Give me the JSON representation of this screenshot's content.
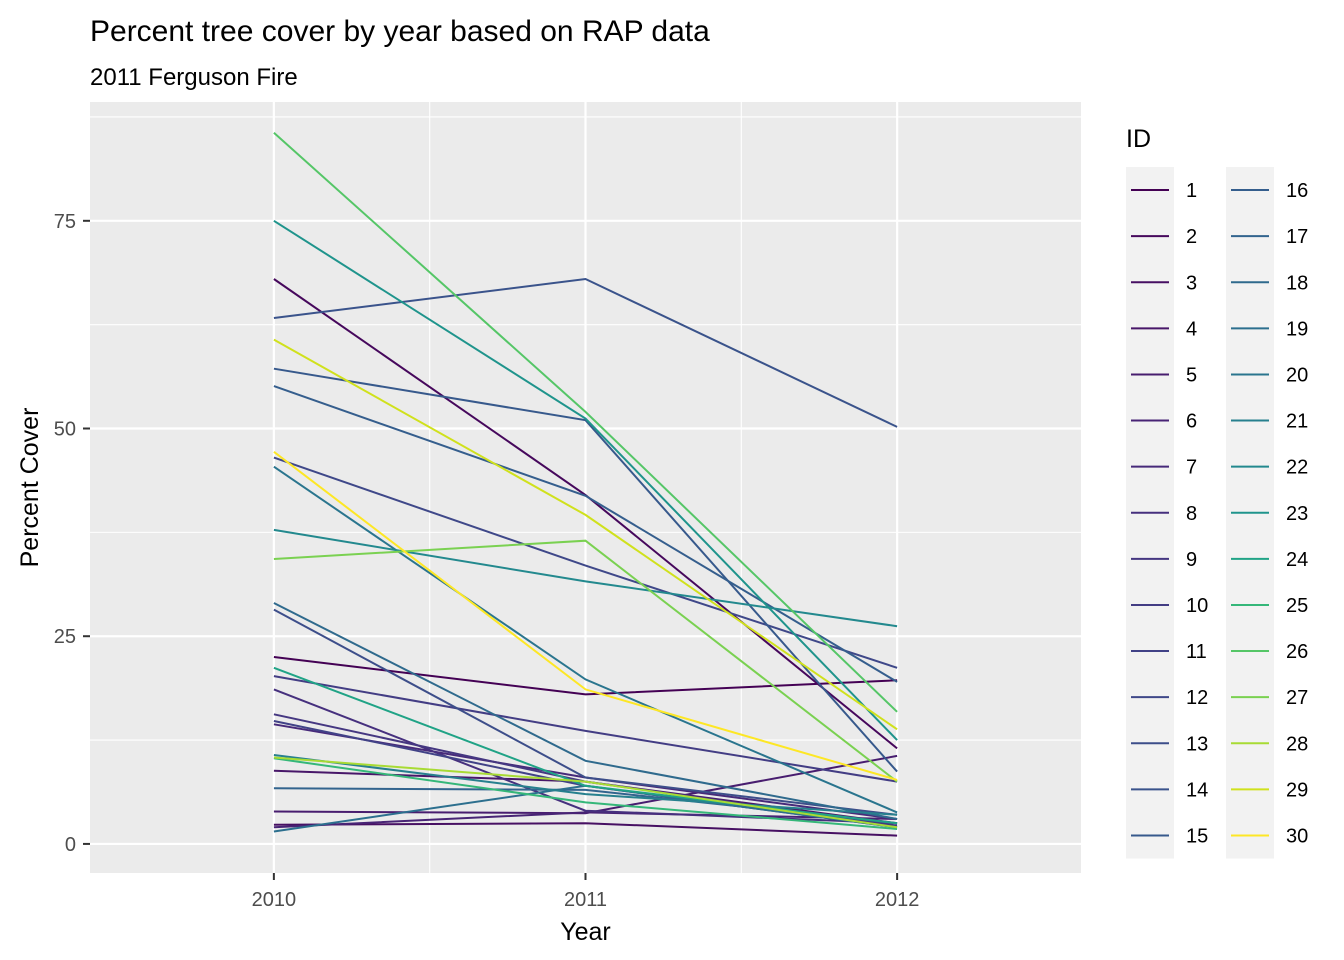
{
  "chart_data": {
    "type": "line",
    "title": "Percent tree cover by year based on RAP data",
    "subtitle": "2011 Ferguson Fire",
    "xlabel": "Year",
    "ylabel": "Percent Cover",
    "x": [
      2010,
      2011,
      2012
    ],
    "x_tick_labels": [
      "2010",
      "2011",
      "2012"
    ],
    "xlim": [
      2009.41,
      2012.59
    ],
    "ylim": [
      -3.5,
      89.3
    ],
    "y_ticks": [
      0,
      25,
      50,
      75
    ],
    "y_tick_labels": [
      "0",
      "25",
      "50",
      "75"
    ],
    "grid": true,
    "legend": {
      "title": "ID",
      "placement": "right",
      "columns": 2
    },
    "series": [
      {
        "name": "1",
        "color": "#440154",
        "values": [
          22.5,
          18.0,
          19.7
        ]
      },
      {
        "name": "2",
        "color": "#46085C",
        "values": [
          68.0,
          42.0,
          11.5
        ]
      },
      {
        "name": "3",
        "color": "#471063",
        "values": [
          2.3,
          2.5,
          1.0
        ]
      },
      {
        "name": "4",
        "color": "#481769",
        "values": [
          8.8,
          7.5,
          2.5
        ]
      },
      {
        "name": "5",
        "color": "#481D6F",
        "values": [
          3.9,
          3.7,
          10.6
        ]
      },
      {
        "name": "6",
        "color": "#482475",
        "values": [
          2.0,
          3.8,
          3.0
        ]
      },
      {
        "name": "7",
        "color": "#472A7A",
        "values": [
          14.4,
          8.0,
          3.0
        ]
      },
      {
        "name": "8",
        "color": "#46307E",
        "values": [
          18.6,
          4.0,
          2.5
        ]
      },
      {
        "name": "9",
        "color": "#453781",
        "values": [
          15.6,
          7.5,
          2.2
        ]
      },
      {
        "name": "10",
        "color": "#433D84",
        "values": [
          20.2,
          13.6,
          7.5
        ]
      },
      {
        "name": "11",
        "color": "#414287",
        "values": [
          14.8,
          7.0,
          2.0
        ]
      },
      {
        "name": "12",
        "color": "#3F4889",
        "values": [
          46.5,
          33.5,
          21.2
        ]
      },
      {
        "name": "13",
        "color": "#3D4E8A",
        "values": [
          28.2,
          8.0,
          3.5
        ]
      },
      {
        "name": "14",
        "color": "#3A538B",
        "values": [
          63.3,
          68.0,
          50.2
        ]
      },
      {
        "name": "15",
        "color": "#37598C",
        "values": [
          57.2,
          51.0,
          8.7
        ]
      },
      {
        "name": "16",
        "color": "#355E8D",
        "values": [
          55.1,
          41.9,
          19.5
        ]
      },
      {
        "name": "17",
        "color": "#32648E",
        "values": [
          6.7,
          6.5,
          2.5
        ]
      },
      {
        "name": "18",
        "color": "#2F6A8D",
        "values": [
          29.0,
          10.0,
          3.0
        ]
      },
      {
        "name": "19",
        "color": "#2C6F8E",
        "values": [
          1.5,
          7.0,
          2.0
        ]
      },
      {
        "name": "20",
        "color": "#2A758E",
        "values": [
          45.4,
          19.8,
          3.8
        ]
      },
      {
        "name": "21",
        "color": "#27808E",
        "values": [
          10.7,
          6.0,
          3.5
        ]
      },
      {
        "name": "22",
        "color": "#23898E",
        "values": [
          37.8,
          31.6,
          26.2
        ]
      },
      {
        "name": "23",
        "color": "#1F948C",
        "values": [
          75.0,
          51.2,
          12.5
        ]
      },
      {
        "name": "24",
        "color": "#20A386",
        "values": [
          21.2,
          7.0,
          2.5
        ]
      },
      {
        "name": "25",
        "color": "#35B779",
        "values": [
          10.3,
          5.0,
          1.8
        ]
      },
      {
        "name": "26",
        "color": "#55C667",
        "values": [
          85.6,
          52.0,
          15.9
        ]
      },
      {
        "name": "27",
        "color": "#7AD151",
        "values": [
          34.3,
          36.5,
          7.5
        ]
      },
      {
        "name": "28",
        "color": "#A8DB34",
        "values": [
          10.4,
          7.5,
          2.0
        ]
      },
      {
        "name": "29",
        "color": "#D0E11C",
        "values": [
          60.7,
          39.6,
          13.8
        ]
      },
      {
        "name": "30",
        "color": "#FDE725",
        "values": [
          47.2,
          18.6,
          7.7
        ]
      }
    ]
  }
}
